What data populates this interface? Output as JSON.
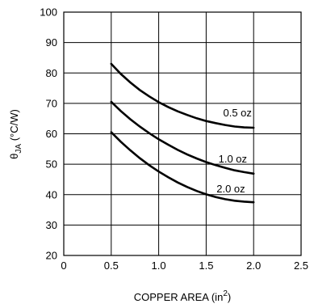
{
  "chart_data": {
    "type": "line",
    "xlabel": "COPPER AREA (in",
    "xlabel_superscript": "2",
    "xlabel_suffix": ")",
    "ylabel": "θ",
    "ylabel_subscript": "JA",
    "ylabel_suffix": " (°C/W)",
    "xlim": [
      0,
      2.5
    ],
    "ylim": [
      20,
      100
    ],
    "xticks": [
      "0",
      "0.5",
      "1.0",
      "1.5",
      "2.0",
      "2.5"
    ],
    "yticks": [
      "20",
      "30",
      "40",
      "50",
      "60",
      "70",
      "80",
      "90",
      "100"
    ],
    "grid": true,
    "series": [
      {
        "name": "0.5 oz",
        "x": [
          0.5,
          0.6,
          0.7,
          0.8,
          0.9,
          1.0,
          1.1,
          1.2,
          1.3,
          1.4,
          1.5,
          1.6,
          1.7,
          1.8,
          1.9,
          2.0
        ],
        "y": [
          83.0,
          79.7,
          76.9,
          74.4,
          72.3,
          70.4,
          68.8,
          67.4,
          66.2,
          65.1,
          64.2,
          63.5,
          62.9,
          62.4,
          62.1,
          62.0
        ]
      },
      {
        "name": "1.0 oz",
        "x": [
          0.5,
          0.6,
          0.7,
          0.8,
          0.9,
          1.0,
          1.1,
          1.2,
          1.3,
          1.4,
          1.5,
          1.6,
          1.7,
          1.8,
          1.9,
          2.0
        ],
        "y": [
          70.5,
          67.5,
          64.8,
          62.4,
          60.2,
          58.2,
          56.4,
          54.7,
          53.2,
          51.9,
          50.7,
          49.7,
          48.8,
          48.0,
          47.4,
          46.9
        ]
      },
      {
        "name": "2.0 oz",
        "x": [
          0.5,
          0.6,
          0.7,
          0.8,
          0.9,
          1.0,
          1.1,
          1.2,
          1.3,
          1.4,
          1.5,
          1.6,
          1.7,
          1.8,
          1.9,
          2.0
        ],
        "y": [
          60.5,
          57.4,
          54.6,
          52.0,
          49.7,
          47.6,
          45.7,
          44.0,
          42.5,
          41.2,
          40.1,
          39.2,
          38.5,
          38.0,
          37.7,
          37.5
        ]
      }
    ]
  }
}
